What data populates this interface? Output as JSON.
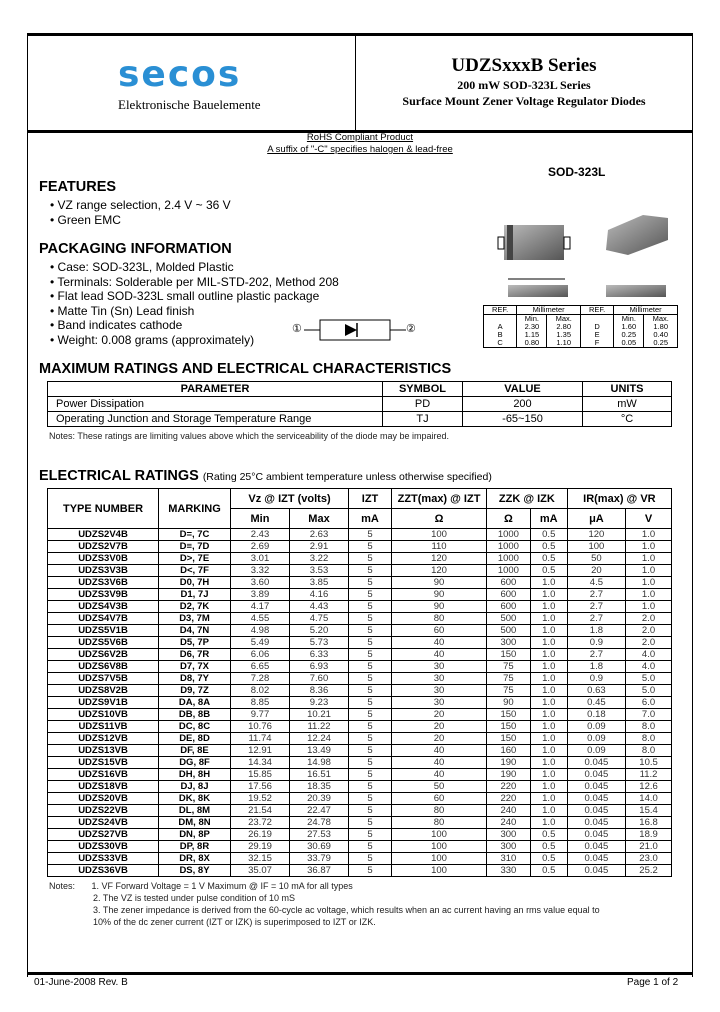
{
  "header": {
    "logo": "secos",
    "logo_sub": "Elektronische Bauelemente",
    "title": "UDZSxxxB Series",
    "subtitle1": "200 mW SOD-323L Series",
    "subtitle2": "Surface Mount Zener Voltage Regulator Diodes"
  },
  "rohs": {
    "line1": "RoHS Compliant Product",
    "line2": "A suffix of \"-C\" specifies halogen & lead-free"
  },
  "features": {
    "heading": "FEATURES",
    "items": [
      "VZ range selection, 2.4 V ~ 36 V",
      "Green EMC"
    ]
  },
  "packaging": {
    "heading": "PACKAGING INFORMATION",
    "items": [
      "Case: SOD-323L, Molded Plastic",
      "Terminals: Solderable per MIL-STD-202, Method 208",
      "Flat lead SOD-323L small outline plastic package",
      "Matte Tin (Sn) Lead finish",
      "Band indicates cathode",
      "Weight: 0.008 grams (approximately)"
    ]
  },
  "package": {
    "name": "SOD-323L",
    "labels": [
      "A",
      "B",
      "C",
      "D",
      "E",
      "F",
      "①",
      "②"
    ],
    "dim_headers": [
      "REF.",
      "Millimeter",
      "Min.",
      "Max."
    ],
    "dims": [
      [
        "A",
        "2.30",
        "2.80",
        "D",
        "1.60",
        "1.80"
      ],
      [
        "B",
        "1.15",
        "1.35",
        "E",
        "0.25",
        "0.40"
      ],
      [
        "C",
        "0.80",
        "1.10",
        "F",
        "0.05",
        "0.25"
      ]
    ],
    "pin1": "①",
    "pin2": "②"
  },
  "max_ratings": {
    "heading": "MAXIMUM RATINGS AND ELECTRICAL CHARACTERISTICS",
    "headers": [
      "PARAMETER",
      "SYMBOL",
      "VALUE",
      "UNITS"
    ],
    "rows": [
      [
        "Power Dissipation",
        "PD",
        "200",
        "mW"
      ],
      [
        "Operating Junction and Storage Temperature Range",
        "TJ",
        "-65~150",
        "°C"
      ]
    ],
    "note": "Notes: These ratings are limiting values above which the serviceability of the diode may be impaired."
  },
  "electrical": {
    "heading": "ELECTRICAL RATINGS",
    "subheading": "(Rating 25°C ambient temperature unless otherwise specified)",
    "headers": [
      "TYPE NUMBER",
      "MARKING",
      "Vz @ IZT (volts)",
      "IZT",
      "ZZT(max) @ IZT",
      "ZZK @ IZK",
      "IR(max) @ VR"
    ],
    "subheaders": [
      "Min",
      "Max",
      "mA",
      "Ω",
      "Ω",
      "mA",
      "μA",
      "V"
    ],
    "rows": [
      [
        "UDZS2V4B",
        "D=, 7C",
        "2.43",
        "2.63",
        "5",
        "100",
        "1000",
        "0.5",
        "120",
        "1.0"
      ],
      [
        "UDZS2V7B",
        "D≡, 7D",
        "2.69",
        "2.91",
        "5",
        "110",
        "1000",
        "0.5",
        "100",
        "1.0"
      ],
      [
        "UDZS3V0B",
        "D>, 7E",
        "3.01",
        "3.22",
        "5",
        "120",
        "1000",
        "0.5",
        "50",
        "1.0"
      ],
      [
        "UDZS3V3B",
        "D<, 7F",
        "3.32",
        "3.53",
        "5",
        "120",
        "1000",
        "0.5",
        "20",
        "1.0"
      ],
      [
        "UDZS3V6B",
        "D0, 7H",
        "3.60",
        "3.85",
        "5",
        "90",
        "600",
        "1.0",
        "4.5",
        "1.0"
      ],
      [
        "UDZS3V9B",
        "D1, 7J",
        "3.89",
        "4.16",
        "5",
        "90",
        "600",
        "1.0",
        "2.7",
        "1.0"
      ],
      [
        "UDZS4V3B",
        "D2, 7K",
        "4.17",
        "4.43",
        "5",
        "90",
        "600",
        "1.0",
        "2.7",
        "1.0"
      ],
      [
        "UDZS4V7B",
        "D3, 7M",
        "4.55",
        "4.75",
        "5",
        "80",
        "500",
        "1.0",
        "2.7",
        "2.0"
      ],
      [
        "UDZS5V1B",
        "D4, 7N",
        "4.98",
        "5.20",
        "5",
        "60",
        "500",
        "1.0",
        "1.8",
        "2.0"
      ],
      [
        "UDZS5V6B",
        "D5, 7P",
        "5.49",
        "5.73",
        "5",
        "40",
        "300",
        "1.0",
        "0.9",
        "2.0"
      ],
      [
        "UDZS6V2B",
        "D6, 7R",
        "6.06",
        "6.33",
        "5",
        "40",
        "150",
        "1.0",
        "2.7",
        "4.0"
      ],
      [
        "UDZS6V8B",
        "D7, 7X",
        "6.65",
        "6.93",
        "5",
        "30",
        "75",
        "1.0",
        "1.8",
        "4.0"
      ],
      [
        "UDZS7V5B",
        "D8, 7Y",
        "7.28",
        "7.60",
        "5",
        "30",
        "75",
        "1.0",
        "0.9",
        "5.0"
      ],
      [
        "UDZS8V2B",
        "D9, 7Z",
        "8.02",
        "8.36",
        "5",
        "30",
        "75",
        "1.0",
        "0.63",
        "5.0"
      ],
      [
        "UDZS9V1B",
        "DA, 8A",
        "8.85",
        "9.23",
        "5",
        "30",
        "90",
        "1.0",
        "0.45",
        "6.0"
      ],
      [
        "UDZS10VB",
        "DB, 8B",
        "9.77",
        "10.21",
        "5",
        "20",
        "150",
        "1.0",
        "0.18",
        "7.0"
      ],
      [
        "UDZS11VB",
        "DC, 8C",
        "10.76",
        "11.22",
        "5",
        "20",
        "150",
        "1.0",
        "0.09",
        "8.0"
      ],
      [
        "UDZS12VB",
        "DE, 8D",
        "11.74",
        "12.24",
        "5",
        "20",
        "150",
        "1.0",
        "0.09",
        "8.0"
      ],
      [
        "UDZS13VB",
        "DF, 8E",
        "12.91",
        "13.49",
        "5",
        "40",
        "160",
        "1.0",
        "0.09",
        "8.0"
      ],
      [
        "UDZS15VB",
        "DG, 8F",
        "14.34",
        "14.98",
        "5",
        "40",
        "190",
        "1.0",
        "0.045",
        "10.5"
      ],
      [
        "UDZS16VB",
        "DH, 8H",
        "15.85",
        "16.51",
        "5",
        "40",
        "190",
        "1.0",
        "0.045",
        "11.2"
      ],
      [
        "UDZS18VB",
        "DJ, 8J",
        "17.56",
        "18.35",
        "5",
        "50",
        "220",
        "1.0",
        "0.045",
        "12.6"
      ],
      [
        "UDZS20VB",
        "DK, 8K",
        "19.52",
        "20.39",
        "5",
        "60",
        "220",
        "1.0",
        "0.045",
        "14.0"
      ],
      [
        "UDZS22VB",
        "DL, 8M",
        "21.54",
        "22.47",
        "5",
        "80",
        "240",
        "1.0",
        "0.045",
        "15.4"
      ],
      [
        "UDZS24VB",
        "DM, 8N",
        "23.72",
        "24.78",
        "5",
        "80",
        "240",
        "1.0",
        "0.045",
        "16.8"
      ],
      [
        "UDZS27VB",
        "DN, 8P",
        "26.19",
        "27.53",
        "5",
        "100",
        "300",
        "0.5",
        "0.045",
        "18.9"
      ],
      [
        "UDZS30VB",
        "DP, 8R",
        "29.19",
        "30.69",
        "5",
        "100",
        "300",
        "0.5",
        "0.045",
        "21.0"
      ],
      [
        "UDZS33VB",
        "DR, 8X",
        "32.15",
        "33.79",
        "5",
        "100",
        "310",
        "0.5",
        "0.045",
        "23.0"
      ],
      [
        "UDZS36VB",
        "DS, 8Y",
        "35.07",
        "36.87",
        "5",
        "100",
        "330",
        "0.5",
        "0.045",
        "25.2"
      ]
    ],
    "notes_label": "Notes:",
    "notes": [
      "1. VF Forward Voltage = 1 V Maximum @ IF = 10 mA for all types",
      "2. The VZ is tested under pulse condition of 10 mS",
      "3. The zener impedance is derived from the 60-cycle ac voltage, which results when an ac current having an rms value equal to",
      "10% of the dc zener current (IZT or IZK) is superimposed to IZT or IZK."
    ]
  },
  "footer": {
    "date": "01-June-2008 Rev. B",
    "page": "Page 1 of 2"
  }
}
